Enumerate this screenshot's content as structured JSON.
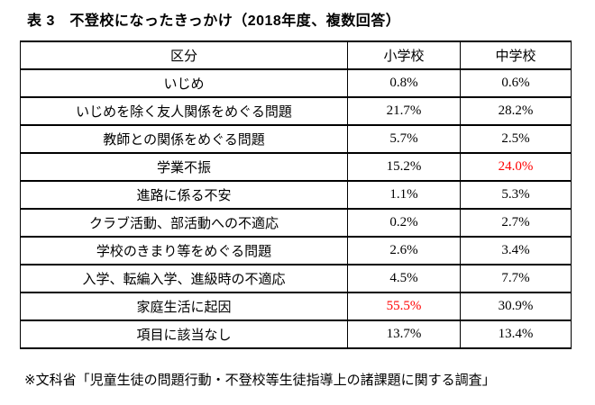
{
  "page": {
    "title": "表 3　不登校になったきっかけ（2018年度、複数回答）",
    "footnote": "※文科省「児童生徒の問題行動・不登校等生徒指導上の諸課題に関する調査」"
  },
  "table": {
    "headers": [
      "区分",
      "小学校",
      "中学校"
    ],
    "rows": [
      {
        "category": "いじめ",
        "elementary": "0.8%",
        "junior_high": "0.6%",
        "elementary_highlight": false,
        "junior_high_highlight": false
      },
      {
        "category": "いじめを除く友人関係をめぐる問題",
        "elementary": "21.7%",
        "junior_high": "28.2%",
        "elementary_highlight": false,
        "junior_high_highlight": false
      },
      {
        "category": "教師との関係をめぐる問題",
        "elementary": "5.7%",
        "junior_high": "2.5%",
        "elementary_highlight": false,
        "junior_high_highlight": false
      },
      {
        "category": "学業不振",
        "elementary": "15.2%",
        "junior_high": "24.0%",
        "elementary_highlight": false,
        "junior_high_highlight": true
      },
      {
        "category": "進路に係る不安",
        "elementary": "1.1%",
        "junior_high": "5.3%",
        "elementary_highlight": false,
        "junior_high_highlight": false
      },
      {
        "category": "クラブ活動、部活動への不適応",
        "elementary": "0.2%",
        "junior_high": "2.7%",
        "elementary_highlight": false,
        "junior_high_highlight": false
      },
      {
        "category": "学校のきまり等をめぐる問題",
        "elementary": "2.6%",
        "junior_high": "3.4%",
        "elementary_highlight": false,
        "junior_high_highlight": false
      },
      {
        "category": "入学、転編入学、進級時の不適応",
        "elementary": "4.5%",
        "junior_high": "7.7%",
        "elementary_highlight": false,
        "junior_high_highlight": false
      },
      {
        "category": "家庭生活に起因",
        "elementary": "55.5%",
        "junior_high": "30.9%",
        "elementary_highlight": true,
        "junior_high_highlight": false
      },
      {
        "category": "項目に該当なし",
        "elementary": "13.7%",
        "junior_high": "13.4%",
        "elementary_highlight": false,
        "junior_high_highlight": false
      }
    ]
  },
  "colors": {
    "highlight_red": "#ff0000",
    "border_black": "#000000",
    "background": "#ffffff"
  }
}
